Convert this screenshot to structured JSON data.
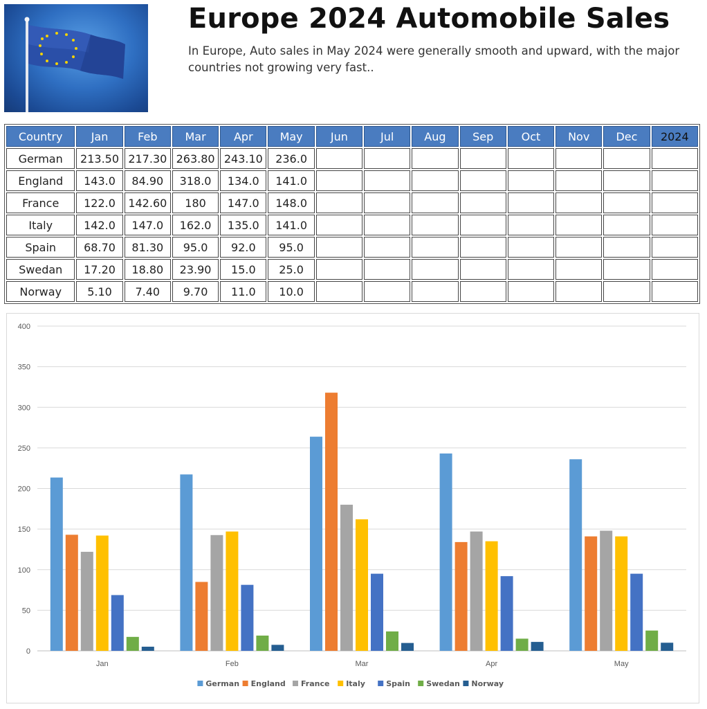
{
  "header": {
    "title": "Europe 2024 Automobile Sales",
    "subtitle": "In Europe, Auto sales in May 2024 were generally smooth and upward, with the major countries not growing very fast.."
  },
  "table": {
    "columns": [
      "Country",
      "Jan",
      "Feb",
      "Mar",
      "Apr",
      "May",
      "Jun",
      "Jul",
      "Aug",
      "Sep",
      "Oct",
      "Nov",
      "Dec",
      "2024"
    ],
    "rows": [
      [
        "German",
        "213.50",
        "217.30",
        "263.80",
        "243.10",
        "236.0",
        "",
        "",
        "",
        "",
        "",
        "",
        "",
        ""
      ],
      [
        "England",
        "143.0",
        "84.90",
        "318.0",
        "134.0",
        "141.0",
        "",
        "",
        "",
        "",
        "",
        "",
        "",
        ""
      ],
      [
        "France",
        "122.0",
        "142.60",
        "180",
        "147.0",
        "148.0",
        "",
        "",
        "",
        "",
        "",
        "",
        "",
        ""
      ],
      [
        "Italy",
        "142.0",
        "147.0",
        "162.0",
        "135.0",
        "141.0",
        "",
        "",
        "",
        "",
        "",
        "",
        "",
        ""
      ],
      [
        "Spain",
        "68.70",
        "81.30",
        "95.0",
        "92.0",
        "95.0",
        "",
        "",
        "",
        "",
        "",
        "",
        "",
        ""
      ],
      [
        "Swedan",
        "17.20",
        "18.80",
        "23.90",
        "15.0",
        "25.0",
        "",
        "",
        "",
        "",
        "",
        "",
        "",
        ""
      ],
      [
        "Norway",
        "5.10",
        "7.40",
        "9.70",
        "11.0",
        "10.0",
        "",
        "",
        "",
        "",
        "",
        "",
        "",
        ""
      ]
    ]
  },
  "chart_data": {
    "type": "bar",
    "categories": [
      "Jan",
      "Feb",
      "Mar",
      "Apr",
      "May"
    ],
    "series": [
      {
        "name": "German",
        "color": "#5b9bd5",
        "values": [
          213.5,
          217.3,
          263.8,
          243.1,
          236.0
        ]
      },
      {
        "name": "England",
        "color": "#ed7d31",
        "values": [
          143.0,
          84.9,
          318.0,
          134.0,
          141.0
        ]
      },
      {
        "name": "France",
        "color": "#a5a5a5",
        "values": [
          122.0,
          142.6,
          180,
          147.0,
          148.0
        ]
      },
      {
        "name": "Italy",
        "color": "#ffc000",
        "values": [
          142.0,
          147.0,
          162.0,
          135.0,
          141.0
        ]
      },
      {
        "name": "Spain",
        "color": "#4472c4",
        "values": [
          68.7,
          81.3,
          95.0,
          92.0,
          95.0
        ]
      },
      {
        "name": "Swedan",
        "color": "#70ad47",
        "values": [
          17.2,
          18.8,
          23.9,
          15.0,
          25.0
        ]
      },
      {
        "name": "Norway",
        "color": "#255e91",
        "values": [
          5.1,
          7.4,
          9.7,
          11.0,
          10.0
        ]
      }
    ],
    "ylim": [
      0,
      400
    ],
    "yticks": [
      0,
      50,
      100,
      150,
      200,
      250,
      300,
      350,
      400
    ],
    "grid": true,
    "legend": "bottom"
  }
}
